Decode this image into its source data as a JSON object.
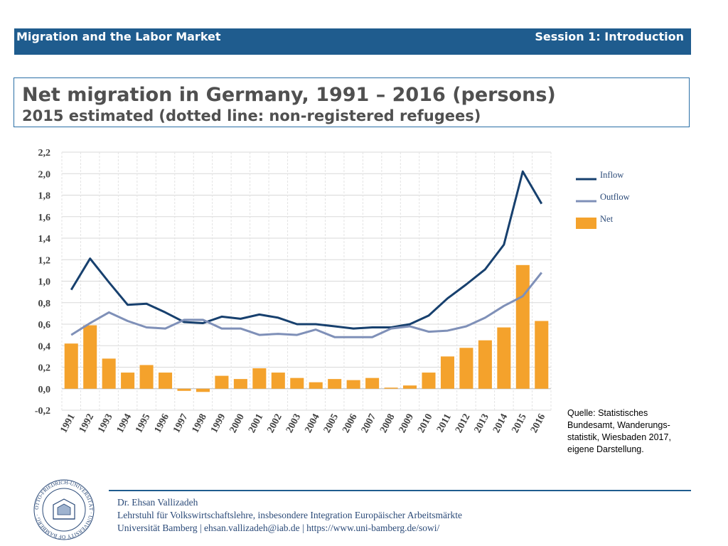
{
  "header": {
    "course": "Migration and the Labor Market",
    "session": "Session 1: Introduction"
  },
  "slide": {
    "title": "Net migration in Germany, 1991 – 2016 (persons)",
    "subtitle": "2015 estimated (dotted line: non-registered refugees)"
  },
  "chart_data": {
    "type": "bar",
    "categories": [
      "1991",
      "1992",
      "1993",
      "1994",
      "1995",
      "1996",
      "1997",
      "1998",
      "1999",
      "2000",
      "2001",
      "2002",
      "2003",
      "2004",
      "2005",
      "2006",
      "2007",
      "2008",
      "2009",
      "2010",
      "2011",
      "2012",
      "2013",
      "2014",
      "2015",
      "2016"
    ],
    "series": [
      {
        "name": "Inflow",
        "type": "line",
        "color": "#17406e",
        "values": [
          0.92,
          1.21,
          0.99,
          0.78,
          0.79,
          0.71,
          0.62,
          0.61,
          0.67,
          0.65,
          0.69,
          0.66,
          0.6,
          0.6,
          0.58,
          0.56,
          0.57,
          0.57,
          0.6,
          0.68,
          0.84,
          0.97,
          1.11,
          1.34,
          2.02,
          1.72
        ]
      },
      {
        "name": "Outflow",
        "type": "line",
        "color": "#7f90b8",
        "values": [
          0.5,
          0.61,
          0.71,
          0.63,
          0.57,
          0.56,
          0.64,
          0.64,
          0.56,
          0.56,
          0.5,
          0.51,
          0.5,
          0.55,
          0.48,
          0.48,
          0.48,
          0.56,
          0.58,
          0.53,
          0.54,
          0.58,
          0.66,
          0.77,
          0.86,
          1.08
        ]
      },
      {
        "name": "Net",
        "type": "bar",
        "color": "#f4a22c",
        "values": [
          0.42,
          0.59,
          0.28,
          0.15,
          0.22,
          0.15,
          -0.02,
          -0.03,
          0.12,
          0.09,
          0.19,
          0.15,
          0.1,
          0.06,
          0.09,
          0.08,
          0.1,
          0.01,
          0.03,
          0.15,
          0.3,
          0.38,
          0.45,
          0.57,
          1.15,
          0.63
        ]
      }
    ],
    "yticks": [
      "2,2",
      "2,0",
      "1,8",
      "1,6",
      "1,4",
      "1,2",
      "1,0",
      "0,8",
      "0,6",
      "0,4",
      "0,2",
      "0,0",
      "-0,2"
    ],
    "ylim": [
      -0.2,
      2.2
    ],
    "grid": true,
    "legend": "right"
  },
  "source_note": "Quelle: Statistisches Bundesamt, Wanderungs-statistik, Wiesbaden 2017, eigene Darstellung.",
  "footer": {
    "name": "Dr. Ehsan Vallizadeh",
    "chair": "Lehrstuhl für Volkswirtschaftslehre, insbesondere Integration Europäischer Arbeitsmärkte",
    "contact": "Universität Bamberg | ehsan.vallizadeh@iab.de | https://www.uni-bamberg.de/sowi/"
  },
  "logo": {
    "ring_text": "OTTO-FRIEDRICH-UNIVERSITÄT · UNIVERSITY OF BAMBERG · "
  }
}
